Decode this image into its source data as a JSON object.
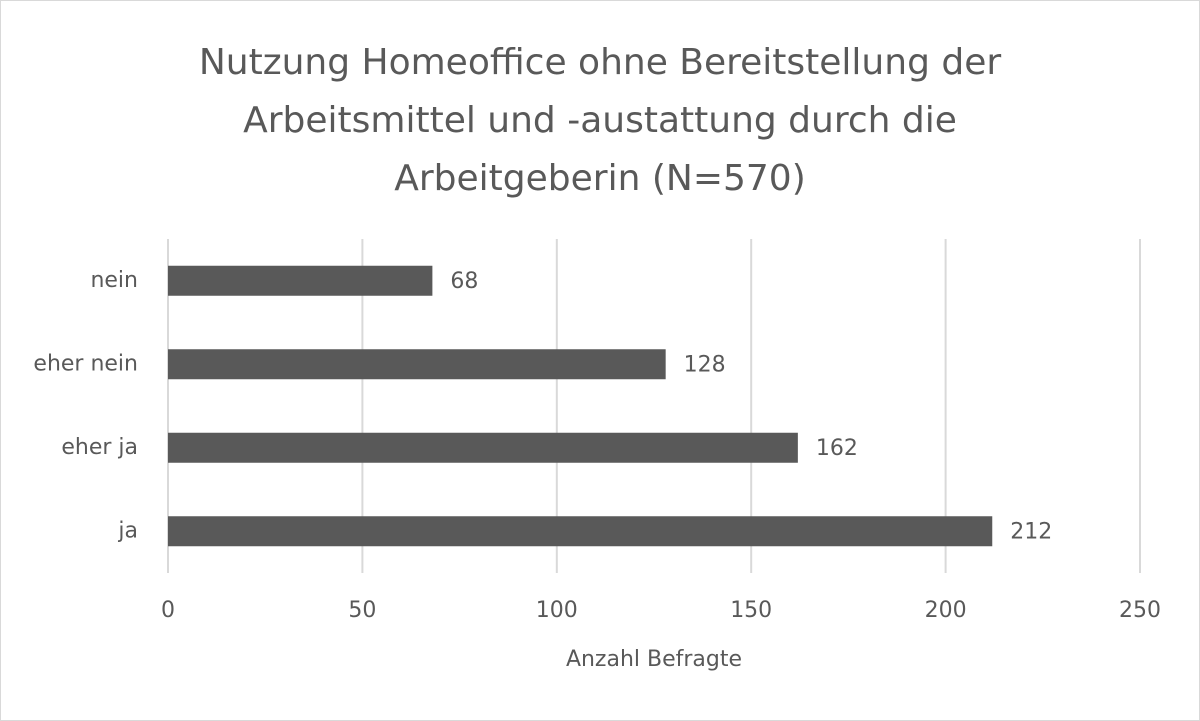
{
  "chart_data": {
    "type": "hbar",
    "title": "Nutzung Homeoffice ohne Bereitstellung der Arbeitsmittel und -austattung durch die Arbeitgeberin (N=570)",
    "categories": [
      "nein",
      "eher nein",
      "eher ja",
      "ja"
    ],
    "values": [
      68,
      128,
      162,
      212
    ],
    "color": "#595959",
    "xlabel": "Anzahl Befragte",
    "xlim": [
      0,
      250
    ],
    "xticks": [
      0,
      50,
      100,
      150,
      200,
      250
    ],
    "grid": true
  }
}
